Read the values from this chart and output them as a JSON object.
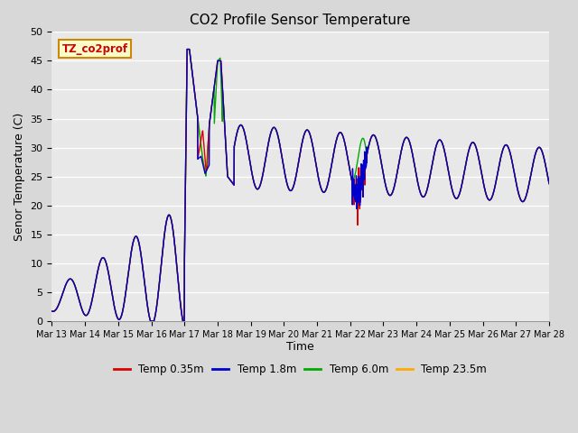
{
  "title": "CO2 Profile Sensor Temperature",
  "xlabel": "Time",
  "ylabel": "Senor Temperature (C)",
  "annotation": "TZ_co2prof",
  "ylim": [
    0,
    50
  ],
  "xlim": [
    0,
    15
  ],
  "legend": [
    {
      "label": "Temp 0.35m",
      "color": "#dd0000"
    },
    {
      "label": "Temp 1.8m",
      "color": "#0000cc"
    },
    {
      "label": "Temp 6.0m",
      "color": "#00aa00"
    },
    {
      "label": "Temp 23.5m",
      "color": "#ffaa00"
    }
  ],
  "fig_bg": "#d8d8d8",
  "plot_bg": "#e8e8e8",
  "grid_color": "#ffffff",
  "yticks": [
    0,
    5,
    10,
    15,
    20,
    25,
    30,
    35,
    40,
    45,
    50
  ],
  "xtick_labels": [
    "Mar 13",
    "Mar 14",
    "Mar 15",
    "Mar 16",
    "Mar 17",
    "Mar 18",
    "Mar 19",
    "Mar 20",
    "Mar 21",
    "Mar 22",
    "Mar 23",
    "Mar 24",
    "Mar 25",
    "Mar 26",
    "Mar 27",
    "Mar 28"
  ],
  "figsize": [
    6.4,
    4.8
  ],
  "dpi": 100
}
